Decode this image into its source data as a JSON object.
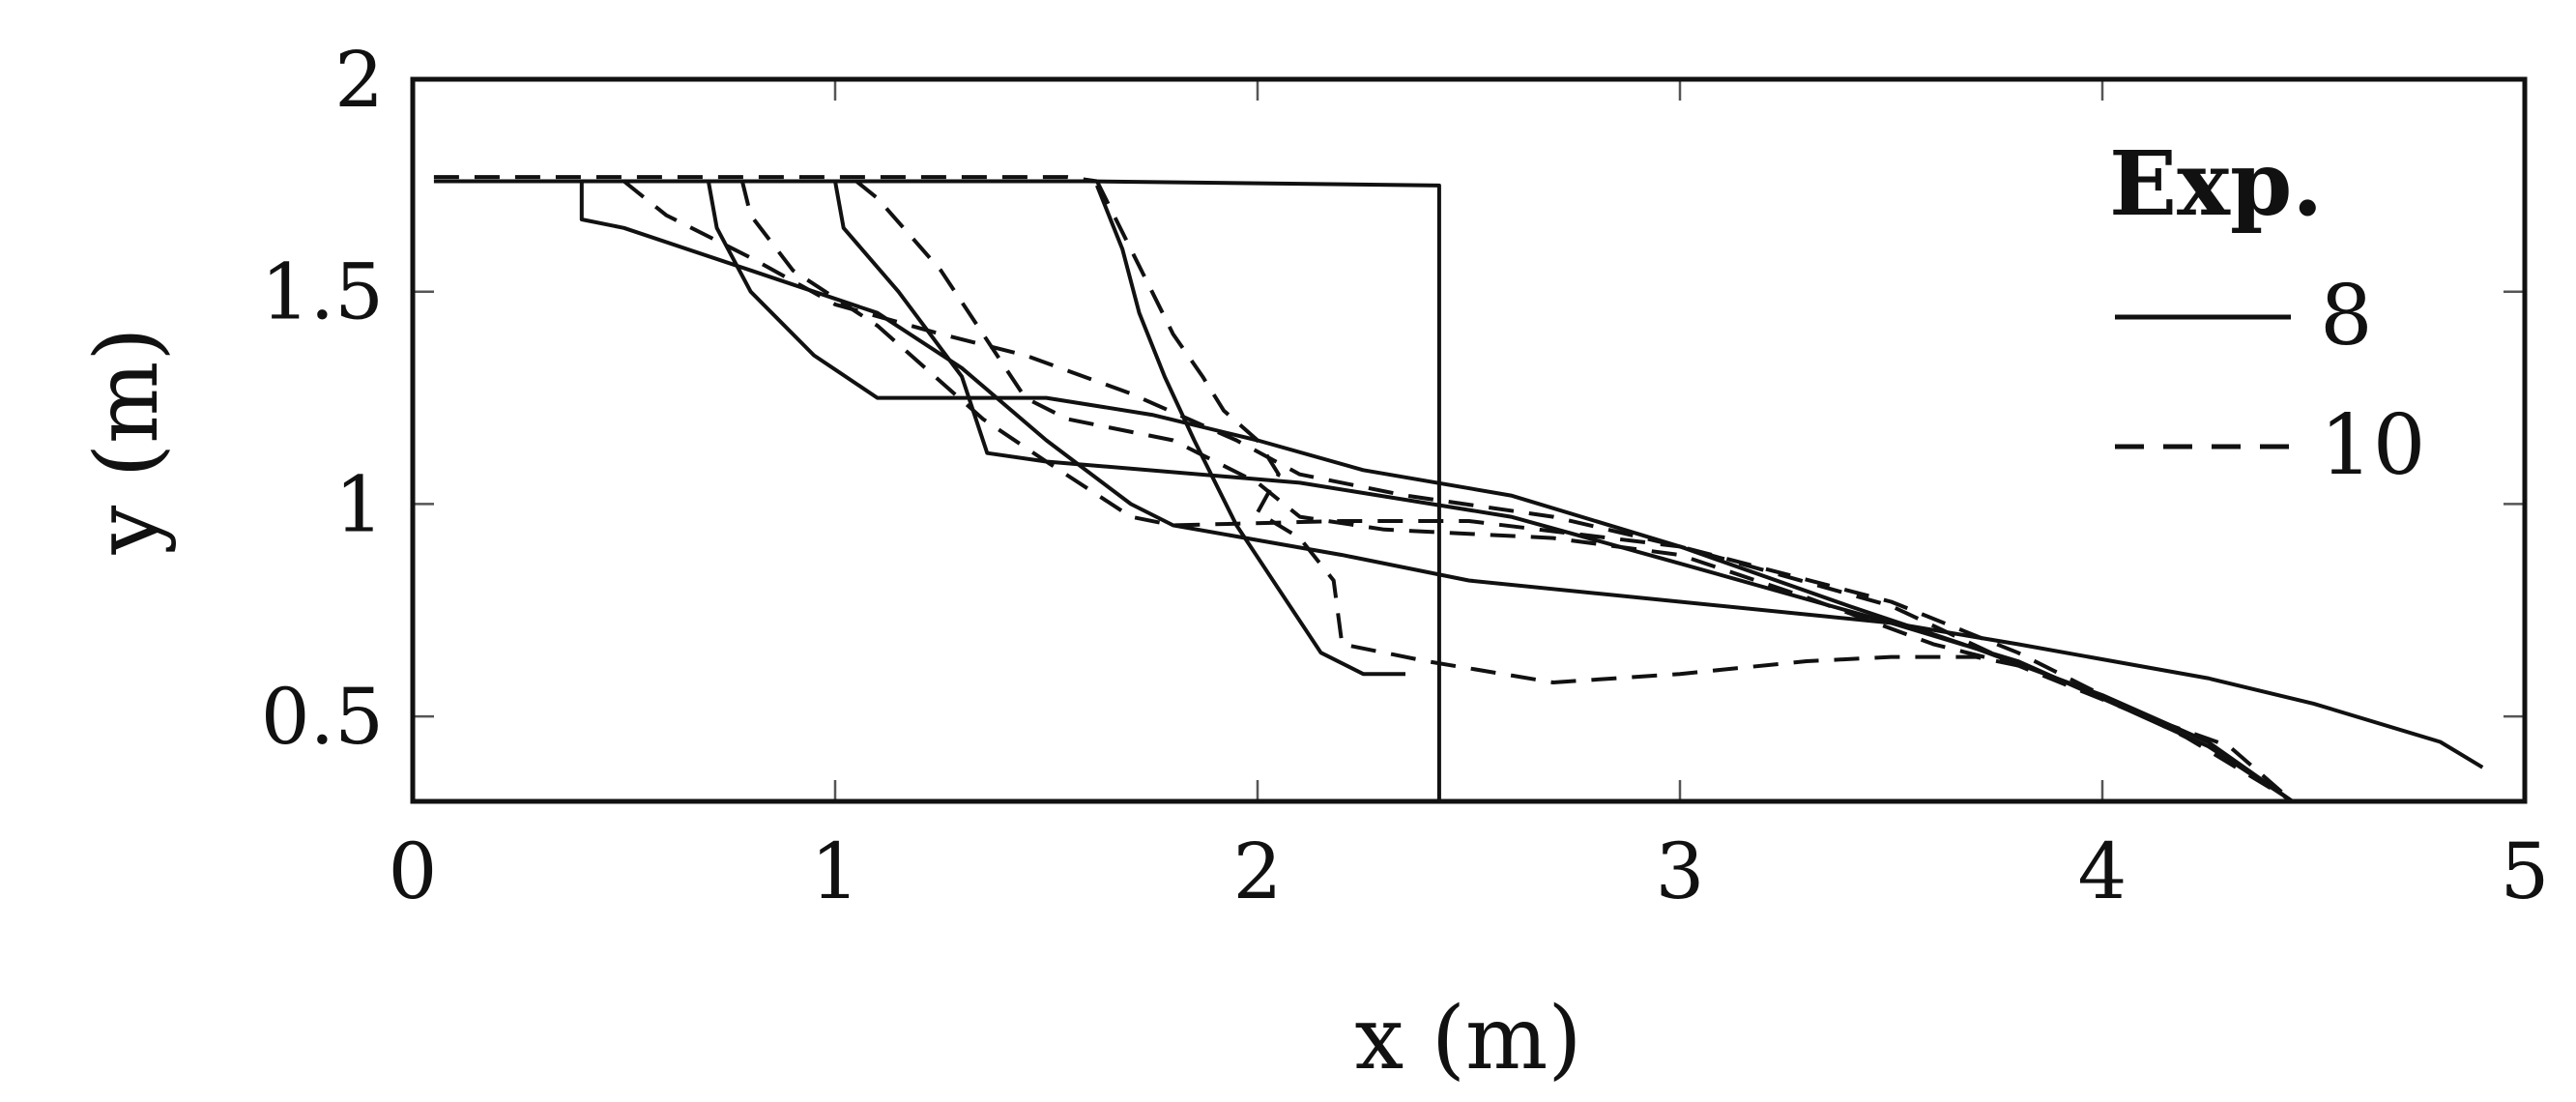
{
  "chart_data": {
    "type": "line",
    "title": "",
    "xlabel": "x (m)",
    "ylabel": "y (m)",
    "xlim": [
      0,
      5
    ],
    "ylim": [
      0.3,
      2
    ],
    "xticks": [
      0,
      1,
      2,
      3,
      4,
      5
    ],
    "xtick_labels": [
      "0",
      "1",
      "2",
      "3",
      "4",
      "5"
    ],
    "yticks": [
      0.5,
      1,
      1.5,
      2
    ],
    "ytick_labels": [
      "0.5",
      "1",
      "1.5",
      "2"
    ],
    "grid": false,
    "legend": {
      "title": "Exp.",
      "placement": "top-right",
      "entries": [
        {
          "label": "8",
          "style": "solid"
        },
        {
          "label": "10",
          "style": "dashed"
        }
      ]
    },
    "color": "#111111",
    "series": [
      {
        "legend": "8",
        "style": "solid",
        "points": [
          [
            0.05,
            1.76
          ],
          [
            1.6,
            1.76
          ],
          [
            2.43,
            1.75
          ],
          [
            2.43,
            0.3
          ]
        ]
      },
      {
        "legend": "8",
        "style": "solid",
        "points": [
          [
            0.4,
            1.76
          ],
          [
            0.4,
            1.67
          ],
          [
            0.5,
            1.65
          ],
          [
            0.8,
            1.55
          ],
          [
            1.1,
            1.45
          ],
          [
            1.3,
            1.32
          ],
          [
            1.5,
            1.15
          ],
          [
            1.7,
            1.0
          ],
          [
            1.8,
            0.95
          ],
          [
            2.2,
            0.88
          ],
          [
            2.5,
            0.82
          ],
          [
            3.0,
            0.77
          ],
          [
            3.5,
            0.72
          ],
          [
            3.8,
            0.67
          ],
          [
            4.25,
            0.59
          ],
          [
            4.5,
            0.53
          ],
          [
            4.8,
            0.44
          ],
          [
            4.9,
            0.38
          ]
        ]
      },
      {
        "legend": "8",
        "style": "solid",
        "points": [
          [
            0.7,
            1.76
          ],
          [
            0.72,
            1.65
          ],
          [
            0.8,
            1.5
          ],
          [
            0.95,
            1.35
          ],
          [
            1.1,
            1.25
          ],
          [
            1.25,
            1.25
          ],
          [
            1.5,
            1.25
          ],
          [
            1.75,
            1.21
          ],
          [
            2.0,
            1.15
          ],
          [
            2.25,
            1.08
          ],
          [
            2.6,
            1.02
          ],
          [
            3.0,
            0.9
          ],
          [
            3.4,
            0.76
          ],
          [
            3.7,
            0.66
          ],
          [
            4.0,
            0.55
          ],
          [
            4.25,
            0.44
          ],
          [
            4.45,
            0.3
          ]
        ]
      },
      {
        "legend": "8",
        "style": "solid",
        "points": [
          [
            1.0,
            1.76
          ],
          [
            1.02,
            1.65
          ],
          [
            1.15,
            1.5
          ],
          [
            1.3,
            1.3
          ],
          [
            1.36,
            1.12
          ],
          [
            1.5,
            1.1
          ],
          [
            2.1,
            1.05
          ],
          [
            2.6,
            0.97
          ],
          [
            3.0,
            0.86
          ],
          [
            3.5,
            0.72
          ],
          [
            3.8,
            0.63
          ],
          [
            4.05,
            0.52
          ],
          [
            4.25,
            0.43
          ],
          [
            4.45,
            0.3
          ]
        ]
      },
      {
        "legend": "8",
        "style": "solid",
        "points": [
          [
            1.62,
            1.75
          ],
          [
            1.68,
            1.6
          ],
          [
            1.72,
            1.45
          ],
          [
            1.78,
            1.3
          ],
          [
            1.85,
            1.15
          ],
          [
            1.95,
            0.95
          ],
          [
            2.05,
            0.8
          ],
          [
            2.15,
            0.65
          ],
          [
            2.25,
            0.6
          ],
          [
            2.35,
            0.6
          ]
        ]
      },
      {
        "legend": "10",
        "style": "dashed",
        "points": [
          [
            0.05,
            1.77
          ],
          [
            1.55,
            1.77
          ],
          [
            1.62,
            1.76
          ]
        ]
      },
      {
        "legend": "10",
        "style": "dashed",
        "points": [
          [
            0.5,
            1.76
          ],
          [
            0.6,
            1.68
          ],
          [
            0.8,
            1.58
          ],
          [
            1.0,
            1.47
          ],
          [
            1.25,
            1.4
          ],
          [
            1.45,
            1.35
          ],
          [
            1.7,
            1.26
          ],
          [
            1.95,
            1.15
          ],
          [
            2.1,
            1.07
          ],
          [
            2.35,
            1.02
          ],
          [
            2.7,
            0.97
          ],
          [
            3.0,
            0.9
          ],
          [
            3.5,
            0.77
          ],
          [
            3.8,
            0.65
          ],
          [
            4.2,
            0.45
          ],
          [
            4.45,
            0.3
          ]
        ]
      },
      {
        "legend": "10",
        "style": "dashed",
        "points": [
          [
            0.78,
            1.76
          ],
          [
            0.8,
            1.68
          ],
          [
            0.9,
            1.55
          ],
          [
            1.1,
            1.42
          ],
          [
            1.35,
            1.2
          ],
          [
            1.5,
            1.1
          ],
          [
            1.7,
            0.97
          ],
          [
            1.8,
            0.95
          ],
          [
            2.2,
            0.96
          ],
          [
            2.5,
            0.96
          ],
          [
            3.0,
            0.9
          ],
          [
            3.5,
            0.76
          ],
          [
            3.8,
            0.62
          ],
          [
            4.1,
            0.5
          ],
          [
            4.3,
            0.43
          ],
          [
            4.45,
            0.3
          ]
        ]
      },
      {
        "legend": "10",
        "style": "dashed",
        "points": [
          [
            1.05,
            1.76
          ],
          [
            1.1,
            1.72
          ],
          [
            1.25,
            1.55
          ],
          [
            1.35,
            1.4
          ],
          [
            1.45,
            1.25
          ],
          [
            1.55,
            1.2
          ],
          [
            1.8,
            1.15
          ],
          [
            2.0,
            1.05
          ],
          [
            2.1,
            0.97
          ],
          [
            2.3,
            0.94
          ],
          [
            2.7,
            0.92
          ],
          [
            3.0,
            0.88
          ],
          [
            3.3,
            0.78
          ],
          [
            3.6,
            0.67
          ],
          [
            3.8,
            0.62
          ]
        ]
      },
      {
        "legend": "10",
        "style": "dashed",
        "points": [
          [
            1.62,
            1.76
          ],
          [
            1.7,
            1.6
          ],
          [
            1.75,
            1.5
          ],
          [
            1.8,
            1.4
          ],
          [
            1.87,
            1.3
          ],
          [
            1.92,
            1.22
          ],
          [
            2.0,
            1.15
          ],
          [
            2.05,
            1.07
          ],
          [
            2.0,
            0.98
          ],
          [
            2.1,
            0.92
          ],
          [
            2.18,
            0.82
          ],
          [
            2.2,
            0.67
          ],
          [
            2.4,
            0.63
          ],
          [
            2.7,
            0.58
          ],
          [
            3.0,
            0.6
          ],
          [
            3.3,
            0.63
          ],
          [
            3.5,
            0.64
          ],
          [
            3.7,
            0.64
          ],
          [
            3.8,
            0.62
          ]
        ]
      }
    ]
  }
}
